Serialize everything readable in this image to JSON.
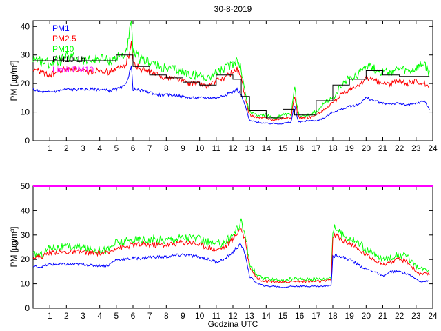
{
  "title": "30-8-2019",
  "chart_data": [
    {
      "type": "line",
      "ylabel": "PM [µg/m³]",
      "xlabel": "",
      "xlim": [
        0,
        24
      ],
      "ylim": [
        0,
        42
      ],
      "xticks": [
        1,
        2,
        3,
        4,
        5,
        6,
        7,
        8,
        9,
        10,
        11,
        12,
        13,
        14,
        15,
        16,
        17,
        18,
        19,
        20,
        21,
        22,
        23,
        24
      ],
      "yticks": [
        0,
        10,
        20,
        30,
        40
      ],
      "legend": [
        "PM1",
        "PM2.5",
        "PM10",
        "PM10 1h",
        "Limit PM10"
      ],
      "legend_colors": [
        "#0000ff",
        "#ff0000",
        "#00ff00",
        "#000000",
        "#ff00ff"
      ],
      "x": [
        0,
        0.5,
        1,
        1.5,
        2,
        2.5,
        3,
        3.5,
        4,
        4.5,
        5,
        5.5,
        5.75,
        5.9,
        6,
        6.5,
        7,
        7.5,
        8,
        8.5,
        9,
        9.5,
        10,
        10.5,
        11,
        11.5,
        12,
        12.25,
        12.5,
        12.75,
        13,
        13.5,
        14,
        14.5,
        15,
        15.5,
        15.7,
        15.9,
        16,
        16.5,
        17,
        17.5,
        18,
        18.5,
        19,
        19.5,
        20,
        20.5,
        21,
        21.5,
        22,
        22.5,
        23,
        23.5,
        23.8
      ],
      "series": [
        {
          "name": "PM1",
          "color": "#0000ff",
          "values": [
            18,
            17,
            17,
            17.5,
            18,
            18,
            18,
            18,
            18,
            17.5,
            18,
            19,
            23,
            26,
            18,
            17.5,
            17,
            16,
            16,
            16,
            15.5,
            15,
            15,
            15,
            15,
            16,
            17,
            18,
            16,
            12,
            7,
            6.5,
            6,
            6,
            6,
            6.5,
            13,
            7,
            6.5,
            7,
            7,
            8,
            10,
            11,
            12,
            12.5,
            15,
            14,
            13,
            13,
            13,
            12.5,
            13,
            14,
            11
          ]
        },
        {
          "name": "PM2.5",
          "color": "#ff0000",
          "values": [
            25,
            24,
            23,
            24,
            25,
            25,
            24,
            24,
            25,
            24,
            25,
            26,
            30,
            36,
            27,
            25,
            24,
            23,
            22,
            22,
            21,
            20,
            20,
            19,
            21,
            22,
            24,
            25,
            22,
            14,
            9,
            8,
            8,
            7,
            8,
            8,
            16,
            9,
            8,
            8,
            9,
            11,
            13,
            16,
            18,
            19,
            22,
            21,
            20,
            20,
            21,
            20,
            21,
            20,
            18
          ]
        },
        {
          "name": "PM10",
          "color": "#00ff00",
          "values": [
            29,
            28,
            27,
            28,
            29,
            29,
            28,
            28,
            29,
            28,
            29,
            30,
            35,
            42,
            31,
            28,
            28,
            26,
            25,
            25,
            24,
            23,
            23,
            22,
            24,
            25,
            27,
            29,
            25,
            16,
            10,
            9,
            9,
            8,
            9,
            9,
            19,
            10,
            9,
            9,
            10,
            13,
            15,
            19,
            22,
            23,
            27,
            25,
            24,
            24,
            25,
            24,
            25,
            27,
            23
          ]
        },
        {
          "name": "PM10 1h",
          "color": "#000000",
          "values": [
            28,
            28,
            28,
            28,
            28,
            28,
            28,
            28,
            28,
            28,
            30,
            30,
            30,
            30,
            26,
            26,
            23,
            23,
            22,
            22,
            20.5,
            20.5,
            19.5,
            19.5,
            23,
            23,
            21.5,
            21.5,
            15.5,
            15.5,
            10.5,
            10.5,
            8,
            8,
            11,
            11,
            9,
            9,
            9,
            9,
            14,
            14,
            19.5,
            19.5,
            21.5,
            21.5,
            24.5,
            24.5,
            23,
            23,
            22.5,
            22.5,
            22.5,
            22.5,
            22.5
          ]
        }
      ]
    },
    {
      "type": "line",
      "ylabel": "PM [µg/m³]",
      "xlabel": "Godzina UTC",
      "xlim": [
        0,
        24
      ],
      "ylim": [
        0,
        50
      ],
      "xticks": [
        1,
        2,
        3,
        4,
        5,
        6,
        7,
        8,
        9,
        10,
        11,
        12,
        13,
        14,
        15,
        16,
        17,
        18,
        19,
        20,
        21,
        22,
        23,
        24
      ],
      "yticks": [
        0,
        10,
        20,
        30,
        40,
        50
      ],
      "limit": {
        "name": "Limit PM10",
        "value": 50,
        "color": "#ff00ff"
      },
      "x": [
        0,
        0.5,
        1,
        1.5,
        2,
        2.5,
        3,
        3.5,
        4,
        4.5,
        5,
        5.5,
        6,
        6.5,
        7,
        7.5,
        8,
        8.5,
        9,
        9.5,
        10,
        10.5,
        11,
        11.5,
        12,
        12.25,
        12.5,
        12.75,
        13,
        13.5,
        14,
        14.5,
        15,
        15.5,
        16,
        16.5,
        17,
        17.5,
        17.9,
        18,
        18.25,
        18.5,
        19,
        19.5,
        20,
        20.5,
        21,
        21.5,
        22,
        22.5,
        23,
        23.25,
        23.5,
        23.8
      ],
      "series": [
        {
          "name": "PM1",
          "color": "#0000ff",
          "values": [
            17,
            17,
            18,
            18,
            18,
            18,
            18,
            17.5,
            17.5,
            17.5,
            20,
            20,
            20.5,
            20.5,
            21,
            21,
            21,
            21.5,
            22,
            21.5,
            21,
            20,
            19,
            20,
            23,
            25,
            26,
            22,
            13,
            10,
            9,
            9,
            8.5,
            9,
            9,
            9,
            9,
            9,
            9.5,
            21,
            22,
            21,
            20,
            18,
            16,
            15,
            13,
            15,
            15,
            14,
            12,
            11,
            11,
            11
          ]
        },
        {
          "name": "PM2.5",
          "color": "#ff0000",
          "values": [
            21,
            21,
            23,
            23,
            23,
            23,
            23,
            22.5,
            22.5,
            22.5,
            25,
            25,
            26,
            26,
            26,
            26,
            26,
            26.5,
            27,
            27,
            26,
            25,
            24,
            25,
            28,
            31,
            33,
            27,
            17,
            12,
            11,
            11,
            10.5,
            11,
            11,
            11,
            11,
            11,
            12,
            29,
            30,
            28,
            27,
            24,
            22,
            20,
            18,
            19,
            20,
            19,
            15,
            14,
            14,
            14
          ]
        },
        {
          "name": "PM10",
          "color": "#00ff00",
          "values": [
            22,
            22,
            25,
            25,
            25,
            25,
            25,
            24,
            24,
            24,
            27,
            27,
            28,
            28,
            28,
            28,
            28,
            28.5,
            29,
            29,
            28,
            27,
            26,
            27,
            30,
            33,
            35,
            30,
            18,
            13,
            12,
            12,
            11,
            12,
            12,
            12,
            12,
            12,
            13,
            32,
            33,
            30,
            29,
            27,
            24,
            22,
            20,
            21,
            22,
            21,
            17,
            16,
            16,
            16
          ]
        }
      ]
    }
  ]
}
